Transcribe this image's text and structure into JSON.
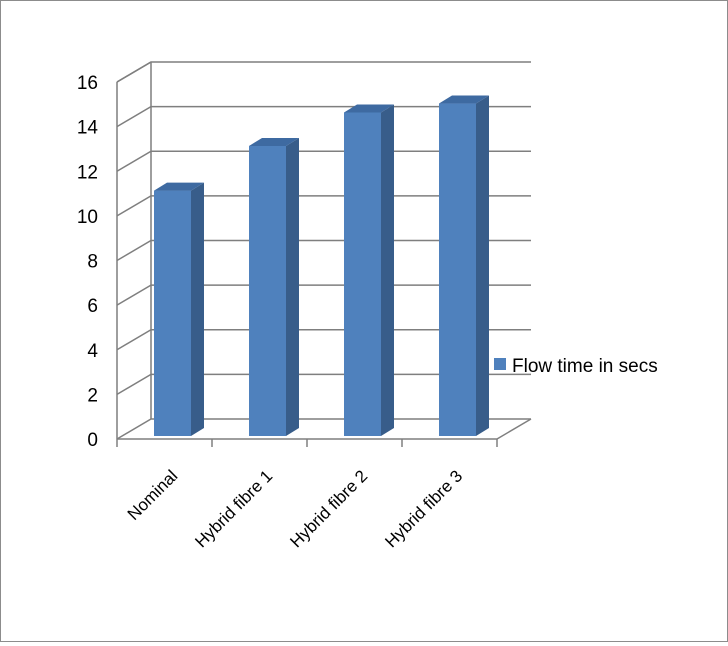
{
  "chart_data": {
    "type": "bar",
    "style": "3d-column",
    "categories": [
      "Nominal",
      "Hybrid fibre 1",
      "Hybrid fibre 2",
      "Hybrid fibre 3"
    ],
    "series": [
      {
        "name": "Flow time in secs",
        "values": [
          11,
          13,
          14.5,
          14.9
        ]
      }
    ],
    "yticks": [
      "0",
      "2",
      "4",
      "6",
      "8",
      "10",
      "12",
      "14",
      "16"
    ],
    "ylim": [
      0,
      16
    ],
    "grid": true,
    "legend_position": "right"
  },
  "colors": {
    "bar_front": "#4f81bd",
    "bar_side": "#385d8a",
    "bar_top": "#3e6aa1",
    "gridline": "#7f7f7f",
    "frame": "#8c8c8c"
  }
}
